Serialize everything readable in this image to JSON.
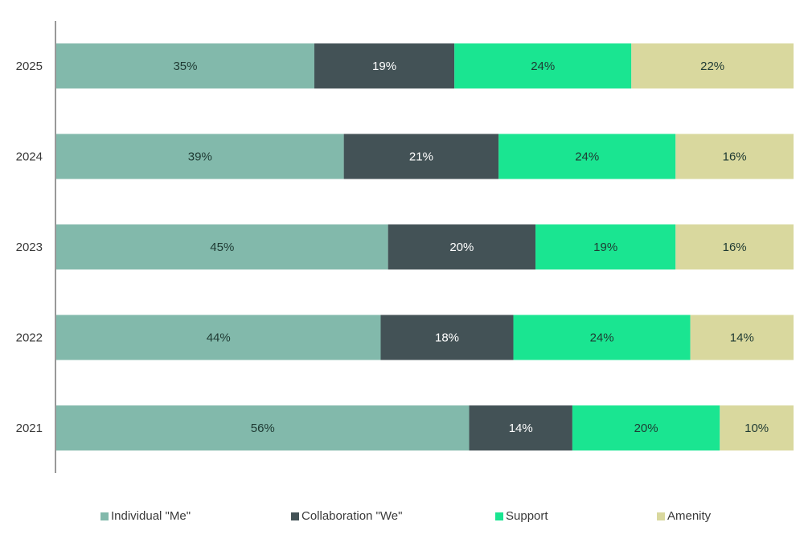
{
  "chart_data": {
    "type": "bar",
    "orientation": "horizontal",
    "stacked": true,
    "categories": [
      "2025",
      "2024",
      "2023",
      "2022",
      "2021"
    ],
    "series": [
      {
        "name": "Individual \"Me\"",
        "color": "#82b9ab",
        "label_color": "#1f3a33",
        "values": [
          35,
          39,
          45,
          44,
          56
        ]
      },
      {
        "name": "Collaboration \"We\"",
        "color": "#435256",
        "label_color": "#ffffff",
        "values": [
          19,
          21,
          20,
          18,
          14
        ]
      },
      {
        "name": "Support",
        "color": "#1ae591",
        "label_color": "#1f3a33",
        "values": [
          24,
          24,
          19,
          24,
          20
        ]
      },
      {
        "name": "Amenity",
        "color": "#d9d89e",
        "label_color": "#1f3a33",
        "values": [
          22,
          16,
          16,
          14,
          10
        ]
      }
    ],
    "value_suffix": "%",
    "xlim": [
      0,
      100
    ],
    "grid": false,
    "legend_position": "bottom"
  }
}
